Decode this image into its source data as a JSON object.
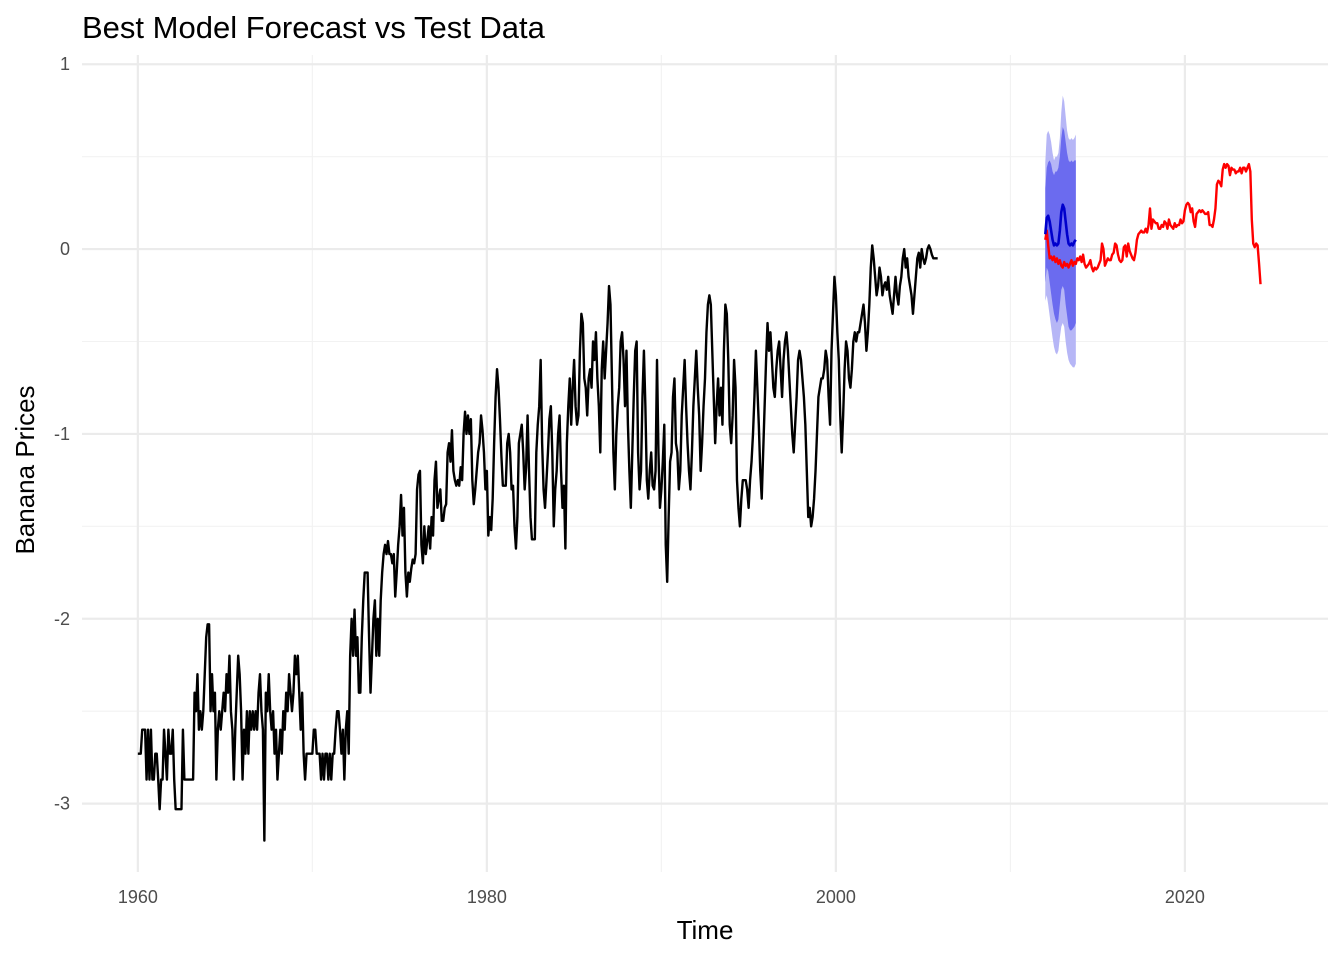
{
  "chart_data": {
    "type": "line",
    "title": "Best Model Forecast vs Test Data",
    "xlabel": "Time",
    "ylabel": "Banana Prices",
    "xlim": [
      1956.8,
      1964.0
    ],
    "ylim": [
      -3.37,
      1.05
    ],
    "x_ticks": [
      1960,
      1980,
      2000,
      2020
    ],
    "x_tick_labels": [
      "1960",
      "1980",
      "2000",
      "2020"
    ],
    "y_ticks": [
      -3,
      -2,
      -1,
      0,
      1
    ],
    "y_tick_labels": [
      "-3",
      "-2",
      "-1",
      "0",
      "1"
    ],
    "grid": true,
    "legend": "none",
    "colors": {
      "train": "#000000",
      "test": "#ff0000",
      "forecast": "#0000cc",
      "band80": "#6b6bef",
      "band95": "#b6b6f6"
    },
    "series": [
      {
        "role": "train",
        "x_start": 1960.0,
        "step": 0.0833333,
        "values": [
          -2.73,
          -2.73,
          -2.73,
          -2.6,
          -2.6,
          -2.6,
          -2.87,
          -2.6,
          -2.87,
          -2.6,
          -2.87,
          -2.87,
          -2.73,
          -2.73,
          -2.87,
          -3.03,
          -2.87,
          -2.87,
          -2.6,
          -2.73,
          -2.87,
          -2.6,
          -2.73,
          -2.73,
          -2.6,
          -2.87,
          -3.03,
          -3.03,
          -3.03,
          -3.03,
          -3.03,
          -2.6,
          -2.87,
          -2.87,
          -2.87,
          -2.87,
          -2.87,
          -2.87,
          -2.87,
          -2.4,
          -2.5,
          -2.3,
          -2.6,
          -2.5,
          -2.6,
          -2.5,
          -2.3,
          -2.1,
          -2.03,
          -2.03,
          -2.5,
          -2.3,
          -2.5,
          -2.4,
          -2.87,
          -2.6,
          -2.5,
          -2.6,
          -2.5,
          -2.4,
          -2.5,
          -2.3,
          -2.4,
          -2.2,
          -2.5,
          -2.6,
          -2.87,
          -2.6,
          -2.4,
          -2.2,
          -2.3,
          -2.5,
          -2.87,
          -2.6,
          -2.73,
          -2.5,
          -2.73,
          -2.5,
          -2.6,
          -2.5,
          -2.6,
          -2.5,
          -2.6,
          -2.4,
          -2.3,
          -2.5,
          -2.6,
          -3.2,
          -2.4,
          -2.5,
          -2.3,
          -2.5,
          -2.6,
          -2.5,
          -2.73,
          -2.6,
          -2.87,
          -2.73,
          -2.6,
          -2.73,
          -2.5,
          -2.6,
          -2.4,
          -2.5,
          -2.3,
          -2.4,
          -2.5,
          -2.4,
          -2.2,
          -2.3,
          -2.2,
          -2.4,
          -2.6,
          -2.4,
          -2.73,
          -2.87,
          -2.73,
          -2.73,
          -2.73,
          -2.73,
          -2.73,
          -2.6,
          -2.6,
          -2.73,
          -2.73,
          -2.73,
          -2.87,
          -2.73,
          -2.87,
          -2.73,
          -2.73,
          -2.87,
          -2.73,
          -2.87,
          -2.73,
          -2.73,
          -2.6,
          -2.5,
          -2.5,
          -2.6,
          -2.73,
          -2.6,
          -2.87,
          -2.6,
          -2.5,
          -2.73,
          -2.2,
          -2.0,
          -2.2,
          -1.95,
          -2.2,
          -2.1,
          -2.4,
          -2.4,
          -2.1,
          -1.9,
          -1.75,
          -1.75,
          -1.75,
          -2.1,
          -2.4,
          -2.2,
          -2.0,
          -1.9,
          -2.2,
          -2.0,
          -2.2,
          -1.9,
          -1.75,
          -1.65,
          -1.6,
          -1.65,
          -1.58,
          -1.65,
          -1.65,
          -1.7,
          -1.65,
          -1.88,
          -1.75,
          -1.6,
          -1.5,
          -1.33,
          -1.55,
          -1.4,
          -1.75,
          -1.88,
          -1.75,
          -1.8,
          -1.73,
          -1.68,
          -1.7,
          -1.65,
          -1.3,
          -1.22,
          -1.2,
          -1.6,
          -1.7,
          -1.5,
          -1.65,
          -1.58,
          -1.5,
          -1.62,
          -1.45,
          -1.55,
          -1.25,
          -1.15,
          -1.4,
          -1.35,
          -1.3,
          -1.47,
          -1.47,
          -1.4,
          -1.38,
          -1.1,
          -1.05,
          -1.15,
          -0.98,
          -1.2,
          -1.25,
          -1.28,
          -1.25,
          -1.28,
          -1.18,
          -1.25,
          -1.0,
          -0.88,
          -1.0,
          -0.9,
          -1.0,
          -0.92,
          -1.25,
          -1.38,
          -1.3,
          -1.2,
          -1.1,
          -1.05,
          -0.9,
          -0.98,
          -1.1,
          -1.3,
          -1.2,
          -1.55,
          -1.45,
          -1.52,
          -1.35,
          -1.05,
          -0.8,
          -0.65,
          -0.75,
          -0.92,
          -1.12,
          -1.28,
          -1.28,
          -1.28,
          -1.05,
          -1.0,
          -1.1,
          -1.3,
          -1.28,
          -1.5,
          -1.62,
          -1.45,
          -1.05,
          -1.0,
          -0.95,
          -1.1,
          -1.3,
          -1.18,
          -0.9,
          -1.2,
          -1.45,
          -1.57,
          -1.57,
          -1.57,
          -1.1,
          -0.95,
          -0.85,
          -0.6,
          -1.05,
          -1.3,
          -1.4,
          -1.25,
          -1.1,
          -0.92,
          -0.85,
          -1.1,
          -1.5,
          -1.3,
          -1.2,
          -1.0,
          -0.9,
          -1.2,
          -1.4,
          -1.28,
          -1.62,
          -1.05,
          -0.85,
          -0.7,
          -0.95,
          -0.75,
          -0.6,
          -0.85,
          -0.95,
          -0.9,
          -0.55,
          -0.35,
          -0.4,
          -0.7,
          -0.75,
          -0.9,
          -0.7,
          -0.65,
          -0.75,
          -0.5,
          -0.6,
          -0.45,
          -0.7,
          -0.85,
          -1.1,
          -0.65,
          -0.5,
          -0.7,
          -0.55,
          -0.4,
          -0.2,
          -0.3,
          -0.7,
          -1.1,
          -1.3,
          -1.0,
          -0.85,
          -0.75,
          -0.5,
          -0.45,
          -0.6,
          -0.85,
          -0.55,
          -0.95,
          -1.2,
          -1.4,
          -1.1,
          -0.8,
          -0.55,
          -0.5,
          -1.1,
          -1.3,
          -1.2,
          -0.8,
          -0.55,
          -0.85,
          -1.25,
          -1.35,
          -1.2,
          -1.1,
          -1.28,
          -1.3,
          -1.2,
          -0.6,
          -1.1,
          -1.4,
          -1.3,
          -1.15,
          -0.95,
          -1.6,
          -1.8,
          -1.45,
          -1.15,
          -1.1,
          -0.8,
          -0.7,
          -1.05,
          -1.1,
          -1.3,
          -1.2,
          -0.9,
          -0.75,
          -0.6,
          -0.85,
          -1.05,
          -1.2,
          -1.3,
          -1.1,
          -0.85,
          -0.7,
          -0.55,
          -0.75,
          -0.9,
          -1.2,
          -1.05,
          -0.85,
          -0.7,
          -0.45,
          -0.3,
          -0.25,
          -0.3,
          -0.55,
          -0.8,
          -1.05,
          -0.85,
          -0.7,
          -0.9,
          -0.75,
          -0.95,
          -0.55,
          -0.3,
          -0.35,
          -0.6,
          -0.95,
          -1.05,
          -0.9,
          -0.6,
          -0.75,
          -1.25,
          -1.4,
          -1.5,
          -1.35,
          -1.25,
          -1.25,
          -1.25,
          -1.3,
          -1.4,
          -1.25,
          -1.15,
          -1.0,
          -0.8,
          -0.55,
          -0.75,
          -0.95,
          -1.2,
          -1.35,
          -1.1,
          -0.85,
          -0.6,
          -0.4,
          -0.55,
          -0.45,
          -0.6,
          -0.75,
          -0.8,
          -0.65,
          -0.55,
          -0.5,
          -0.65,
          -0.8,
          -0.6,
          -0.5,
          -0.45,
          -0.55,
          -0.7,
          -0.85,
          -1.0,
          -1.1,
          -0.95,
          -0.8,
          -0.6,
          -0.55,
          -0.6,
          -0.7,
          -0.8,
          -0.95,
          -1.2,
          -1.45,
          -1.4,
          -1.5,
          -1.45,
          -1.35,
          -1.2,
          -1.0,
          -0.8,
          -0.75,
          -0.7,
          -0.7,
          -0.65,
          -0.55,
          -0.6,
          -0.8,
          -0.95,
          -0.55,
          -0.35,
          -0.15,
          -0.25,
          -0.45,
          -0.6,
          -0.9,
          -1.1,
          -0.9,
          -0.65,
          -0.5,
          -0.55,
          -0.7,
          -0.75,
          -0.65,
          -0.5,
          -0.45,
          -0.5,
          -0.45,
          -0.45,
          -0.4,
          -0.35,
          -0.3,
          -0.4,
          -0.55,
          -0.45,
          -0.3,
          -0.1,
          0.02,
          -0.05,
          -0.15,
          -0.25,
          -0.2,
          -0.1,
          -0.15,
          -0.25,
          -0.2,
          -0.18,
          -0.22,
          -0.15,
          -0.25,
          -0.3,
          -0.35,
          -0.25,
          -0.15,
          -0.25,
          -0.3,
          -0.2,
          -0.15,
          -0.05,
          0.0,
          -0.1,
          -0.05,
          -0.15,
          -0.2,
          -0.25,
          -0.35,
          -0.25,
          -0.15,
          -0.05,
          -0.02,
          -0.1,
          0.0,
          -0.05,
          -0.08,
          -0.05,
          0.0,
          0.02,
          0.0,
          -0.03,
          -0.05,
          -0.05,
          -0.05,
          -0.05
        ]
      },
      {
        "role": "forecast",
        "x_start": 2012.0,
        "step": 0.0833333,
        "values": [
          0.08,
          0.17,
          0.18,
          0.15,
          0.1,
          0.05,
          0.02,
          0.03,
          0.02,
          0.03,
          0.1,
          0.2,
          0.24,
          0.22,
          0.15,
          0.08,
          0.03,
          0.02,
          0.03,
          0.02,
          0.04,
          0.05
        ],
        "lo80": [
          -0.18,
          -0.1,
          -0.12,
          -0.18,
          -0.24,
          -0.3,
          -0.35,
          -0.38,
          -0.4,
          -0.38,
          -0.3,
          -0.22,
          -0.2,
          -0.22,
          -0.3,
          -0.36,
          -0.42,
          -0.44,
          -0.44,
          -0.43,
          -0.42,
          -0.4
        ],
        "hi80": [
          0.33,
          0.44,
          0.47,
          0.48,
          0.46,
          0.42,
          0.4,
          0.42,
          0.42,
          0.44,
          0.5,
          0.6,
          0.66,
          0.64,
          0.58,
          0.52,
          0.48,
          0.47,
          0.48,
          0.47,
          0.48,
          0.48
        ],
        "lo95": [
          -0.28,
          -0.25,
          -0.3,
          -0.36,
          -0.42,
          -0.48,
          -0.53,
          -0.56,
          -0.57,
          -0.55,
          -0.48,
          -0.42,
          -0.4,
          -0.42,
          -0.5,
          -0.56,
          -0.6,
          -0.62,
          -0.63,
          -0.64,
          -0.64,
          -0.62
        ],
        "hi95": [
          0.47,
          0.62,
          0.64,
          0.62,
          0.58,
          0.52,
          0.48,
          0.5,
          0.5,
          0.52,
          0.6,
          0.74,
          0.83,
          0.8,
          0.72,
          0.64,
          0.6,
          0.59,
          0.6,
          0.59,
          0.6,
          0.62
        ]
      },
      {
        "role": "test",
        "x_start": 2012.0,
        "step": 0.0833333,
        "values": [
          0.05,
          0.1,
          0.02,
          -0.05,
          -0.04,
          -0.06,
          -0.04,
          -0.07,
          -0.05,
          -0.08,
          -0.06,
          -0.09,
          -0.1,
          -0.07,
          -0.09,
          -0.08,
          -0.1,
          -0.08,
          -0.06,
          -0.09,
          -0.07,
          -0.08,
          -0.05,
          -0.06,
          -0.04,
          -0.07,
          -0.03,
          -0.08,
          -0.1,
          -0.09,
          -0.08,
          -0.06,
          -0.1,
          -0.12,
          -0.1,
          -0.11,
          -0.1,
          -0.08,
          -0.06,
          0.03,
          0.0,
          -0.09,
          -0.07,
          -0.05,
          -0.06,
          -0.06,
          -0.03,
          -0.02,
          0.03,
          0.02,
          -0.03,
          -0.06,
          -0.07,
          -0.06,
          0.01,
          0.02,
          -0.04,
          0.03,
          -0.01,
          -0.03,
          -0.05,
          -0.06,
          -0.02,
          0.05,
          0.08,
          0.09,
          0.1,
          0.09,
          0.09,
          0.11,
          0.09,
          0.13,
          0.22,
          0.11,
          0.16,
          0.15,
          0.14,
          0.14,
          0.11,
          0.11,
          0.13,
          0.12,
          0.15,
          0.14,
          0.11,
          0.16,
          0.13,
          0.12,
          0.11,
          0.14,
          0.12,
          0.13,
          0.13,
          0.16,
          0.14,
          0.15,
          0.21,
          0.24,
          0.25,
          0.24,
          0.2,
          0.22,
          0.15,
          0.12,
          0.19,
          0.2,
          0.21,
          0.2,
          0.21,
          0.2,
          0.19,
          0.19,
          0.2,
          0.13,
          0.13,
          0.12,
          0.16,
          0.22,
          0.35,
          0.37,
          0.36,
          0.34,
          0.43,
          0.46,
          0.44,
          0.46,
          0.45,
          0.4,
          0.44,
          0.43,
          0.43,
          0.41,
          0.42,
          0.42,
          0.44,
          0.41,
          0.44,
          0.44,
          0.42,
          0.44,
          0.46,
          0.42,
          0.16,
          0.03,
          0.01,
          0.03,
          0.02,
          -0.08,
          -0.19
        ]
      }
    ]
  }
}
